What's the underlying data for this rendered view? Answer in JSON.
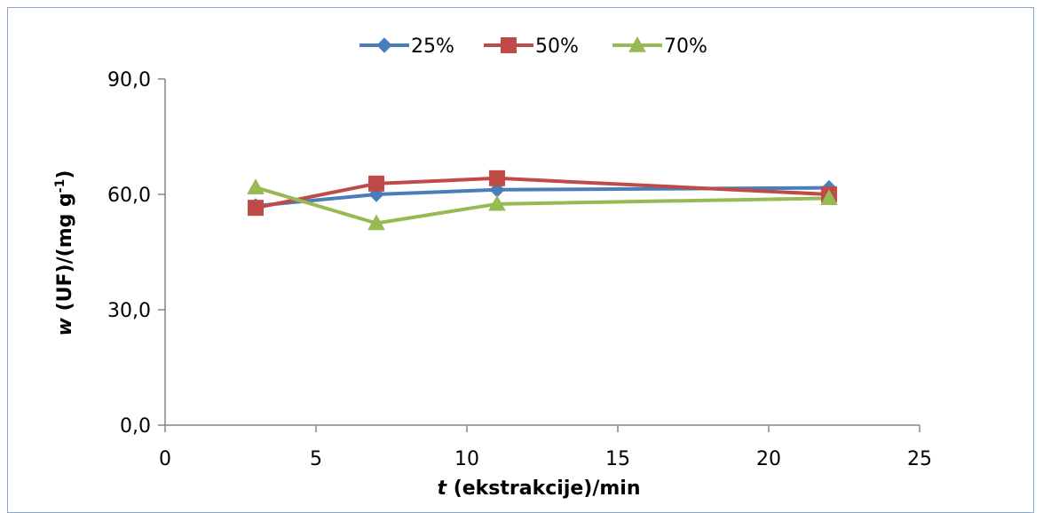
{
  "chart_data": {
    "type": "line",
    "xlabel": {
      "var": "t",
      "rest": " (ekstrakcije)/min"
    },
    "ylabel": {
      "var": "w",
      "mid": " (UF)/(mg g",
      "sup": "-1",
      "end": ")"
    },
    "xlim": [
      0,
      25
    ],
    "ylim": [
      0,
      90
    ],
    "x_ticks": [
      "0",
      "5",
      "10",
      "15",
      "20",
      "25"
    ],
    "x_tick_values": [
      0,
      5,
      10,
      15,
      20,
      25
    ],
    "y_ticks": [
      "0,0",
      "30,0",
      "60,0",
      "90,0"
    ],
    "y_tick_values": [
      0,
      30,
      60,
      90
    ],
    "grid": false,
    "legend_position": "top-center",
    "x": [
      3,
      7,
      11,
      22
    ],
    "series": [
      {
        "name": "25%",
        "marker": "diamond",
        "color": "#4a7ebb",
        "values": [
          57.0,
          60.0,
          61.2,
          61.7
        ]
      },
      {
        "name": "50%",
        "marker": "square",
        "color": "#be4b48",
        "values": [
          56.5,
          62.8,
          64.2,
          60.0
        ]
      },
      {
        "name": "70%",
        "marker": "triangle",
        "color": "#98b954",
        "values": [
          61.8,
          52.5,
          57.5,
          59.0
        ]
      }
    ]
  }
}
